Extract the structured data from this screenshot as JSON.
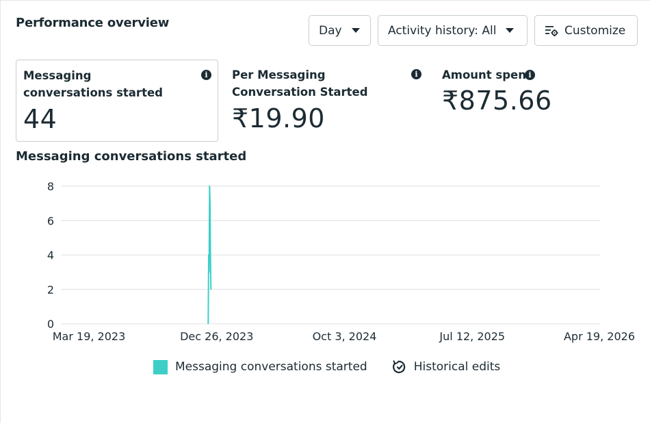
{
  "header": {
    "title": "Performance overview",
    "day_button": "Day",
    "activity_button": "Activity history: All",
    "customize_button": "Customize"
  },
  "metrics": [
    {
      "label": "Messaging conversations started",
      "value": "44"
    },
    {
      "label": "Per Messaging Conversation Started",
      "value": "₹19.90"
    },
    {
      "label": "Amount spent",
      "value": "₹875.66"
    }
  ],
  "chart_title": "Messaging conversations started",
  "legend": {
    "series_label": "Messaging conversations started",
    "historical_label": "Historical edits"
  },
  "colors": {
    "series": "#3ccfc8",
    "text": "#1c2b33",
    "grid": "#dddfe2"
  },
  "icons": [
    "chevron-down-icon",
    "customize-icon",
    "info-icon",
    "historical-edits-icon"
  ],
  "chart_data": {
    "type": "line",
    "title": "Messaging conversations started",
    "x_ticks": [
      "Mar 19, 2023",
      "Dec 26, 2023",
      "Oct 3, 2024",
      "Jul 12, 2025",
      "Apr 19, 2026"
    ],
    "y_ticks": [
      0,
      2,
      4,
      6,
      8
    ],
    "ylim": [
      0,
      8
    ],
    "xlim": [
      "2023-03-19",
      "2026-04-19"
    ],
    "grid": true,
    "legend_position": "bottom",
    "series": [
      {
        "name": "Messaging conversations started",
        "points": [
          {
            "x": "2023-12-07",
            "y": 0
          },
          {
            "x": "2023-12-08",
            "y": 4
          },
          {
            "x": "2023-12-09",
            "y": 3
          },
          {
            "x": "2023-12-10",
            "y": 8
          },
          {
            "x": "2023-12-11",
            "y": 7
          },
          {
            "x": "2023-12-12",
            "y": 4
          },
          {
            "x": "2023-12-13",
            "y": 2
          }
        ]
      }
    ]
  }
}
